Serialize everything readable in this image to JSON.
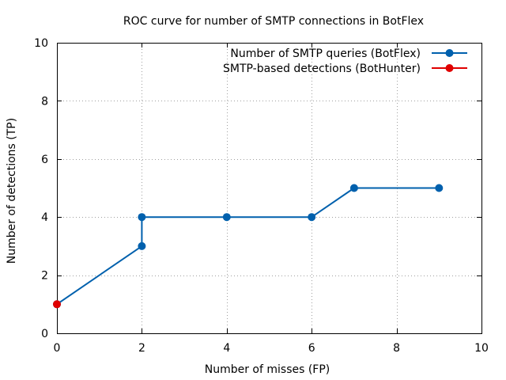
{
  "chart_data": {
    "type": "line",
    "title": "ROC curve for number of SMTP connections in BotFlex",
    "xlabel": "Number of misses (FP)",
    "ylabel": "Number of detections (TP)",
    "xlim": [
      0,
      10
    ],
    "ylim": [
      0,
      10
    ],
    "xticks": [
      0,
      2,
      4,
      6,
      8,
      10
    ],
    "yticks": [
      0,
      2,
      4,
      6,
      8,
      10
    ],
    "xtick_labels": [
      "0",
      "2",
      "4",
      "6",
      "8",
      "10"
    ],
    "ytick_labels": [
      "0",
      "2",
      "4",
      "6",
      "8",
      "10"
    ],
    "grid": true,
    "legend_position": "top-right",
    "series": [
      {
        "name": "Number of SMTP queries (BotFlex)",
        "color": "#0060ad",
        "marker": "circle",
        "x": [
          0,
          2,
          2,
          4,
          6,
          7,
          9
        ],
        "y": [
          1,
          3,
          4,
          4,
          4,
          5,
          5
        ]
      },
      {
        "name": "SMTP-based detections (BotHunter)",
        "color": "#e00000",
        "marker": "circle",
        "x": [
          0
        ],
        "y": [
          1
        ]
      }
    ]
  }
}
